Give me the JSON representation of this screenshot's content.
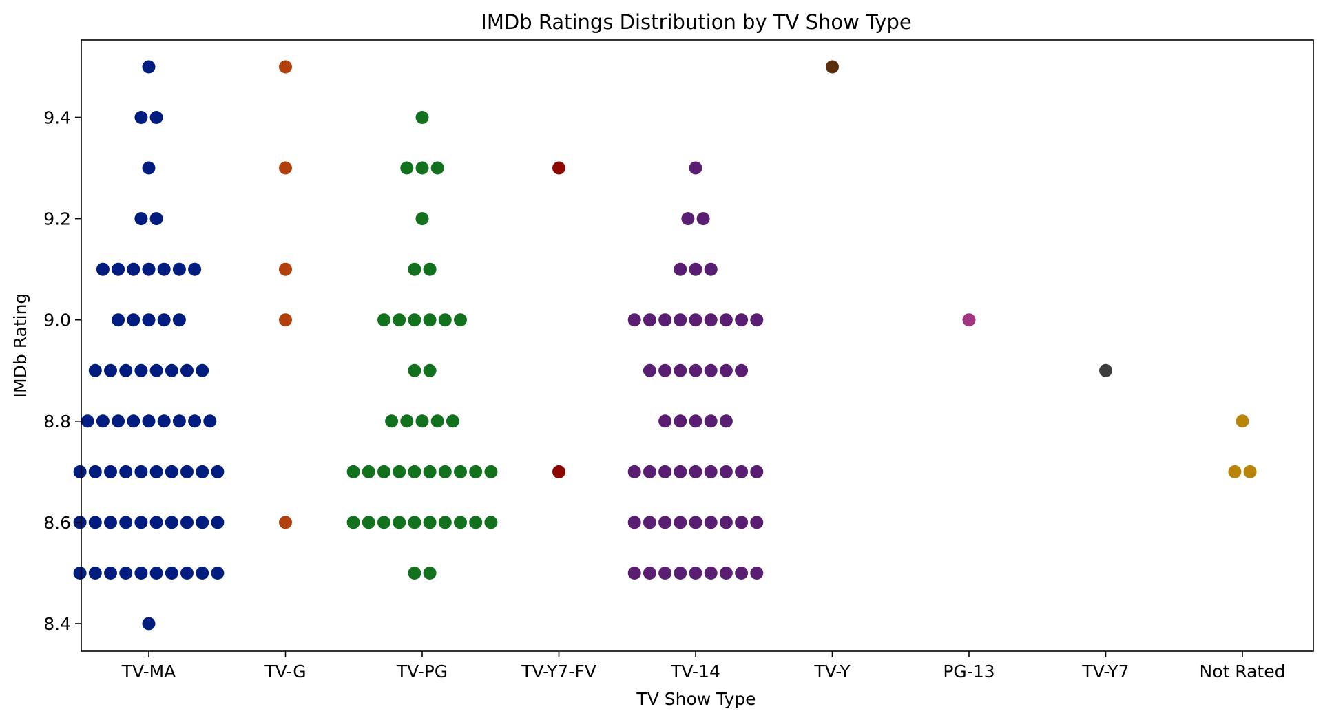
{
  "chart_data": {
    "type": "scatter",
    "subtype": "swarm",
    "title": "IMDb Ratings Distribution by TV Show Type",
    "xlabel": "TV Show Type",
    "ylabel": "IMDb Rating",
    "ylim": [
      8.35,
      9.56
    ],
    "yticks": [
      "8.4",
      "8.6",
      "8.8",
      "9.0",
      "9.2",
      "9.4"
    ],
    "grid": false,
    "legend": "none",
    "categories": [
      "TV-MA",
      "TV-G",
      "TV-PG",
      "TV-Y7-FV",
      "TV-14",
      "TV-Y",
      "PG-13",
      "TV-Y7",
      "Not Rated"
    ],
    "series": [
      {
        "category": "TV-MA",
        "color": "#001c7f",
        "counts": [
          {
            "rating": 9.5,
            "n": 1
          },
          {
            "rating": 9.4,
            "n": 2
          },
          {
            "rating": 9.3,
            "n": 1
          },
          {
            "rating": 9.2,
            "n": 2
          },
          {
            "rating": 9.1,
            "n": 7
          },
          {
            "rating": 9.0,
            "n": 5
          },
          {
            "rating": 8.9,
            "n": 8
          },
          {
            "rating": 8.8,
            "n": 9
          },
          {
            "rating": 8.7,
            "n": 10
          },
          {
            "rating": 8.6,
            "n": 10
          },
          {
            "rating": 8.5,
            "n": 10
          },
          {
            "rating": 8.4,
            "n": 1
          }
        ]
      },
      {
        "category": "TV-G",
        "color": "#b1400d",
        "counts": [
          {
            "rating": 9.5,
            "n": 1
          },
          {
            "rating": 9.3,
            "n": 1
          },
          {
            "rating": 9.1,
            "n": 1
          },
          {
            "rating": 9.0,
            "n": 1
          },
          {
            "rating": 8.6,
            "n": 1
          }
        ]
      },
      {
        "category": "TV-PG",
        "color": "#12711c",
        "counts": [
          {
            "rating": 9.4,
            "n": 1
          },
          {
            "rating": 9.3,
            "n": 3
          },
          {
            "rating": 9.2,
            "n": 1
          },
          {
            "rating": 9.1,
            "n": 2
          },
          {
            "rating": 9.0,
            "n": 6
          },
          {
            "rating": 8.9,
            "n": 2
          },
          {
            "rating": 8.8,
            "n": 5
          },
          {
            "rating": 8.7,
            "n": 10
          },
          {
            "rating": 8.6,
            "n": 10
          },
          {
            "rating": 8.5,
            "n": 2
          }
        ]
      },
      {
        "category": "TV-Y7-FV",
        "color": "#8c0800",
        "counts": [
          {
            "rating": 9.3,
            "n": 1
          },
          {
            "rating": 8.7,
            "n": 1
          }
        ]
      },
      {
        "category": "TV-14",
        "color": "#591e71",
        "counts": [
          {
            "rating": 9.3,
            "n": 1
          },
          {
            "rating": 9.2,
            "n": 2
          },
          {
            "rating": 9.1,
            "n": 3
          },
          {
            "rating": 9.0,
            "n": 9
          },
          {
            "rating": 8.9,
            "n": 7
          },
          {
            "rating": 8.8,
            "n": 5
          },
          {
            "rating": 8.7,
            "n": 9
          },
          {
            "rating": 8.6,
            "n": 9
          },
          {
            "rating": 8.5,
            "n": 9
          }
        ]
      },
      {
        "category": "TV-Y",
        "color": "#592f0d",
        "counts": [
          {
            "rating": 9.5,
            "n": 1
          }
        ]
      },
      {
        "category": "PG-13",
        "color": "#a23582",
        "counts": [
          {
            "rating": 9.0,
            "n": 1
          }
        ]
      },
      {
        "category": "TV-Y7",
        "color": "#3c3c3c",
        "counts": [
          {
            "rating": 8.9,
            "n": 1
          }
        ]
      },
      {
        "category": "Not Rated",
        "color": "#b8850a",
        "counts": [
          {
            "rating": 8.8,
            "n": 1
          },
          {
            "rating": 8.7,
            "n": 2
          }
        ]
      }
    ]
  }
}
